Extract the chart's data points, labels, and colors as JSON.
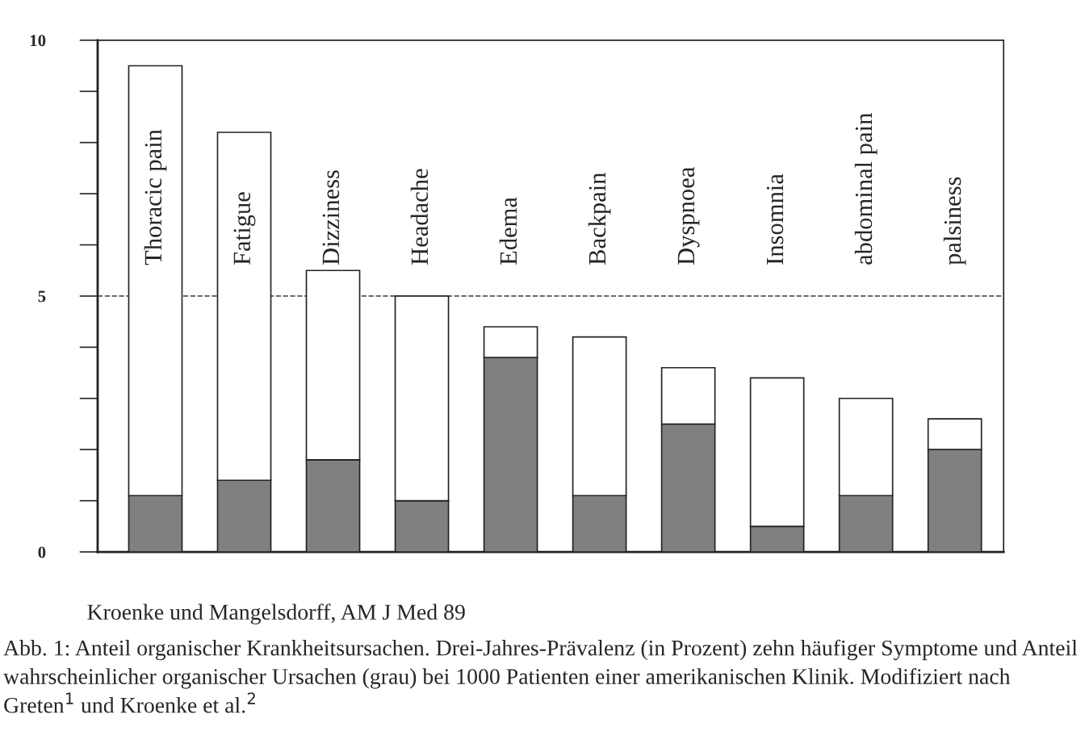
{
  "chart_data": {
    "type": "bar",
    "stacked": true,
    "categories": [
      "Thoracic pain",
      "Fatigue",
      "Dizziness",
      "Headache",
      "Edema",
      "Backpain",
      "Dyspnoea",
      "Insomnia",
      "abdominal pain",
      "palsiness"
    ],
    "series": [
      {
        "color": "#808080",
        "values": [
          1.1,
          1.4,
          1.8,
          1.0,
          3.8,
          1.1,
          2.5,
          0.5,
          1.1,
          2.0
        ]
      },
      {
        "color": "#ffffff",
        "values": [
          8.4,
          6.8,
          3.7,
          4.0,
          0.6,
          3.1,
          1.1,
          2.9,
          1.9,
          0.6
        ]
      }
    ],
    "ylim": [
      0,
      10
    ],
    "yticks": [
      0,
      5,
      10
    ],
    "ref_lines": [
      {
        "axis": "y",
        "value": 5,
        "color": "#555555",
        "line_style": "dashed"
      }
    ],
    "grid": false,
    "annotations": [
      "Kroenke und Mangelsdorff, AM J Med 89",
      "Abb. 1: Anteil organischer Krankheitsursachen. Drei-Jahres-Prävalenz (in Prozent) zehn häufiger Symptome und Anteil wahrscheinlicher organischer Ursachen (grau) bei 1000 Patienten einer amerikanischen Klinik. Modifiziert nach Greten$^{1}$ und Kroenke et al.$^{2}$"
    ]
  }
}
